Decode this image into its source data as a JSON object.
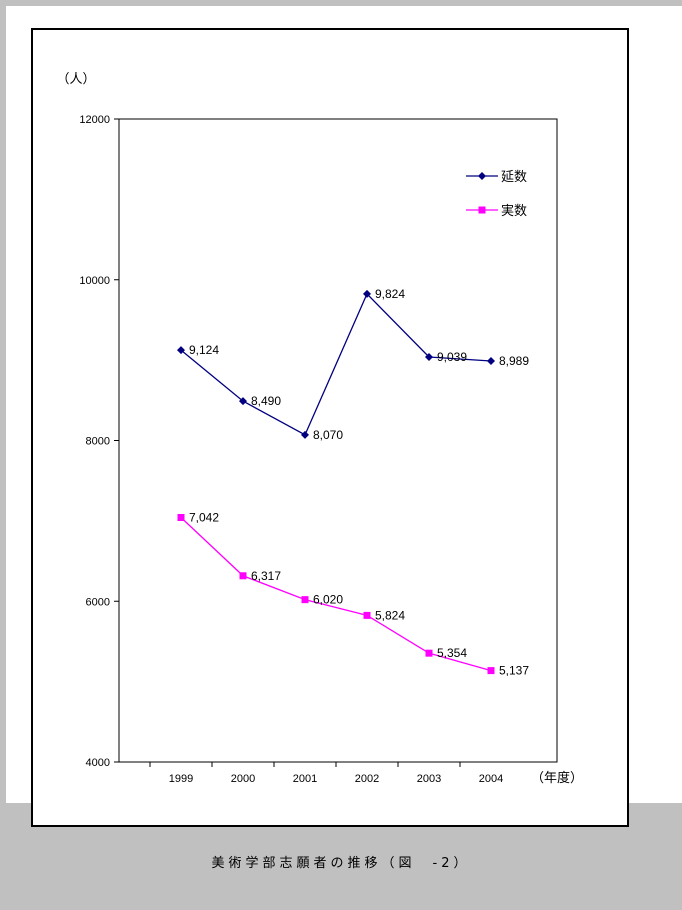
{
  "caption": "美術学部志願者の推移（図　-2）",
  "chart_data": {
    "type": "line",
    "ylabel": "（人）",
    "xlabel": "（年度）",
    "categories": [
      "1999",
      "2000",
      "2001",
      "2002",
      "2003",
      "2004"
    ],
    "ylim": [
      4000,
      12000
    ],
    "yticks": [
      4000,
      6000,
      8000,
      10000,
      12000
    ],
    "grid": false,
    "legend_position": "top-right",
    "series": [
      {
        "name": "延数",
        "values": [
          9124,
          8490,
          8070,
          9824,
          9039,
          8989
        ],
        "labels": [
          "9,124",
          "8,490",
          "8,070",
          "9,824",
          "9,039",
          "8,989"
        ],
        "color": "#000080",
        "marker": "diamond"
      },
      {
        "name": "実数",
        "values": [
          7042,
          6317,
          6020,
          5824,
          5354,
          5137
        ],
        "labels": [
          "7,042",
          "6,317",
          "6,020",
          "5,824",
          "5,354",
          "5,137"
        ],
        "color": "#ff00ff",
        "marker": "square"
      }
    ]
  }
}
